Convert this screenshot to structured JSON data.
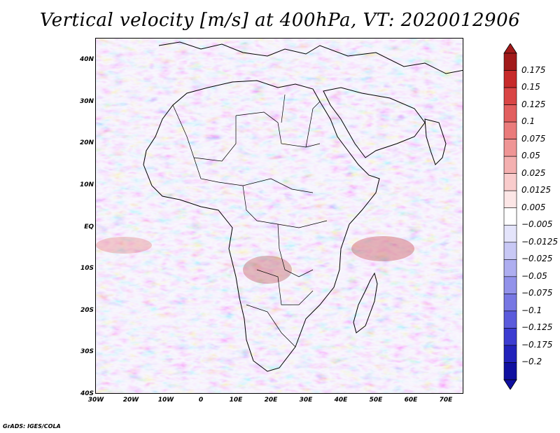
{
  "title": "Vertical velocity [m/s] at 400hPa, VT: 2020012906",
  "credit": "GrADS: IGES/COLA",
  "map": {
    "lat_labels": [
      "40N",
      "30N",
      "20N",
      "10N",
      "EQ",
      "10S",
      "20S",
      "30S",
      "40S"
    ],
    "lon_labels": [
      "30W",
      "20W",
      "10W",
      "0",
      "10E",
      "20E",
      "30E",
      "40E",
      "50E",
      "60E",
      "70E"
    ],
    "lat_range": [
      -40,
      45
    ],
    "lon_range": [
      -30,
      75
    ]
  },
  "colorbar": {
    "levels": [
      "0.175",
      "0.15",
      "0.125",
      "0.1",
      "0.075",
      "0.05",
      "0.025",
      "0.0125",
      "0.005",
      "-0.005",
      "-0.0125",
      "-0.025",
      "-0.05",
      "-0.075",
      "-0.1",
      "-0.125",
      "-0.175",
      "-0.2"
    ],
    "colors": [
      "#a11a1a",
      "#c72a2a",
      "#d94545",
      "#e25f5f",
      "#ea7b7b",
      "#ef9595",
      "#f4b0b0",
      "#f9cccc",
      "#fce6e6",
      "#ffffff",
      "#e4e4fb",
      "#c8c8f5",
      "#aeaef0",
      "#9292ea",
      "#7777e3",
      "#5b5bdc",
      "#3c3cd1",
      "#2222bb",
      "#1010a0"
    ]
  }
}
